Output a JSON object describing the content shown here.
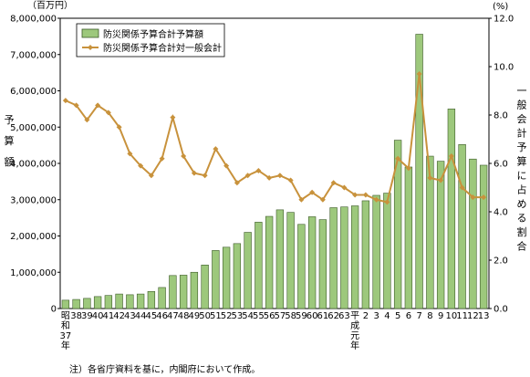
{
  "chart_data": {
    "type": "bar",
    "left_unit": "（百万円）",
    "right_unit": "(%)",
    "left_axis_label": [
      "予",
      "算",
      "額"
    ],
    "right_axis_label": [
      "一",
      "般",
      "会",
      "計",
      "予",
      "算",
      "に",
      "占",
      "め",
      "る",
      "割",
      "合"
    ],
    "left_ylim": [
      0,
      8000000
    ],
    "right_ylim": [
      0,
      12
    ],
    "left_ticks": [
      "0",
      "1,000,000",
      "2,000,000",
      "3,000,000",
      "4,000,000",
      "5,000,000",
      "6,000,000",
      "7,000,000",
      "8,000,000"
    ],
    "right_ticks": [
      "0.0",
      "2.0",
      "4.0",
      "6.0",
      "8.0",
      "10.0",
      "12.0"
    ],
    "categories": [
      "昭和37年",
      "38",
      "39",
      "40",
      "41",
      "42",
      "43",
      "44",
      "45",
      "46",
      "47",
      "48",
      "49",
      "50",
      "51",
      "52",
      "53",
      "54",
      "55",
      "56",
      "57",
      "58",
      "59",
      "60",
      "61",
      "62",
      "63",
      "平成元年",
      "2",
      "3",
      "4",
      "5",
      "6",
      "7",
      "8",
      "9",
      "10",
      "11",
      "12",
      "13"
    ],
    "x_tick_labels": [
      "38",
      "39",
      "40",
      "41",
      "42",
      "43",
      "44",
      "45",
      "46",
      "47",
      "48",
      "49",
      "50",
      "51",
      "52",
      "53",
      "54",
      "55",
      "56",
      "57",
      "58",
      "59",
      "60",
      "61",
      "62",
      "63",
      "2",
      "3",
      "4",
      "5",
      "6",
      "7",
      "8",
      "9",
      "10",
      "11",
      "12",
      "13"
    ],
    "x_first_label_chars": [
      "昭",
      "和",
      "37",
      "年"
    ],
    "x_heisei_label_chars": [
      "平",
      "成",
      "元",
      "年"
    ],
    "series": [
      {
        "name": "防災関係予算合計予算額",
        "axis": "left",
        "color": "#9dc87c",
        "values": [
          230000,
          250000,
          280000,
          330000,
          360000,
          400000,
          380000,
          400000,
          470000,
          580000,
          910000,
          920000,
          1000000,
          1200000,
          1600000,
          1690000,
          1790000,
          2100000,
          2380000,
          2540000,
          2720000,
          2650000,
          2320000,
          2530000,
          2450000,
          2780000,
          2800000,
          2830000,
          2970000,
          3120000,
          3180000,
          4640000,
          3900000,
          7560000,
          4200000,
          4060000,
          5500000,
          4520000,
          4120000,
          3950000
        ]
      },
      {
        "name": "防災関係予算合計対一般会計",
        "axis": "right",
        "color": "#c8923c",
        "values": [
          8.6,
          8.4,
          7.8,
          8.4,
          8.1,
          7.5,
          6.4,
          5.9,
          5.5,
          6.2,
          7.9,
          6.3,
          5.6,
          5.5,
          6.6,
          5.9,
          5.2,
          5.5,
          5.7,
          5.4,
          5.5,
          5.3,
          4.5,
          4.8,
          4.5,
          5.2,
          5.0,
          4.7,
          4.7,
          4.5,
          4.4,
          6.2,
          5.8,
          9.7,
          5.4,
          5.3,
          6.3,
          5.0,
          4.6,
          4.6
        ]
      }
    ],
    "note": "注）各省庁資料を基に，内閣府において作成。"
  }
}
